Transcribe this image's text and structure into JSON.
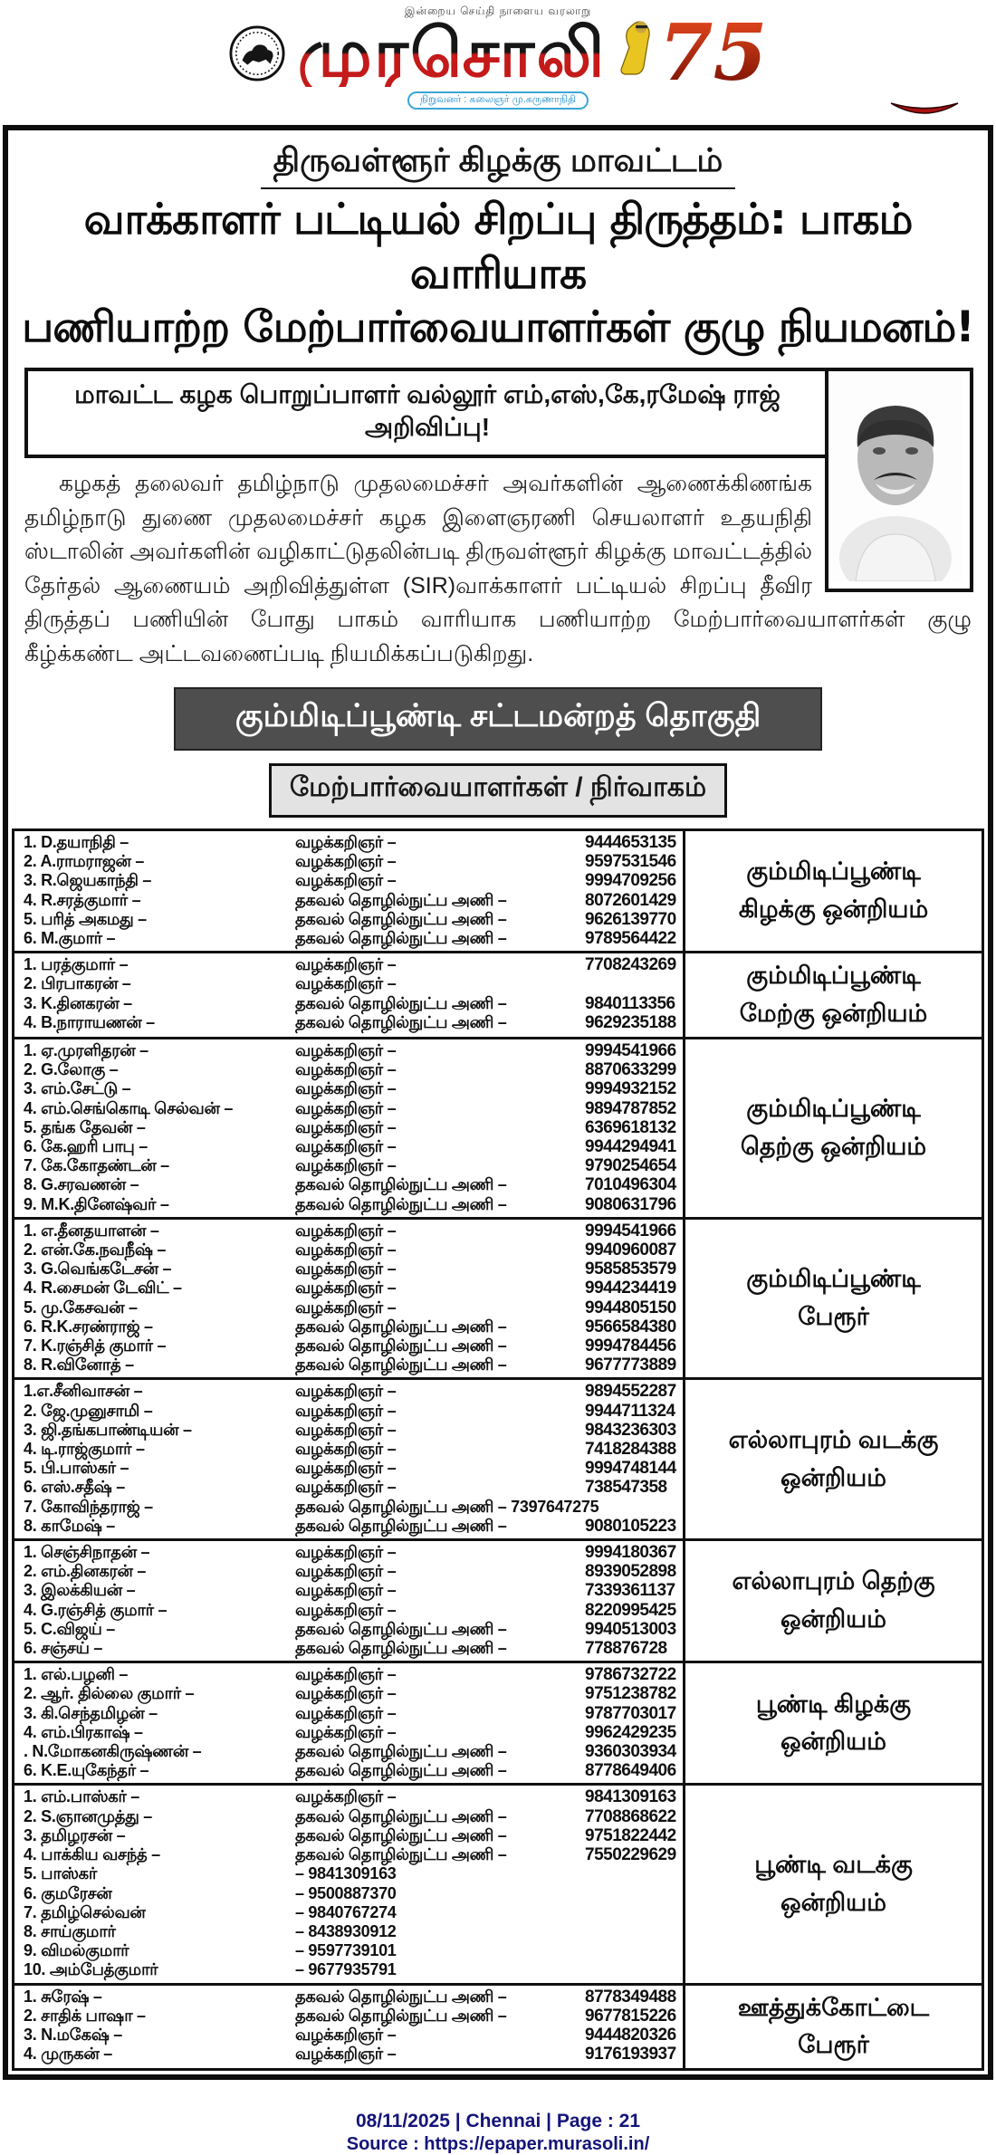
{
  "masthead": {
    "tagline": "இன்றைய செய்தி நாளைய வரலாறு",
    "title": "முரசொலி",
    "founder_capsule": "நிறுவனர் : கலைஞர் மு.கருணாநிதி",
    "anniversary": "75",
    "colors": {
      "title_top": "#161616",
      "title_bottom": "#c41a1a",
      "capsule_blue": "#1d8fd0",
      "anniversary_red": "#b33312"
    }
  },
  "article": {
    "district_title": "திருவள்ளூர் கிழக்கு மாவட்டம்",
    "headline_line1": "வாக்காளர் பட்டியல் சிறப்பு திருத்தம்: பாகம் வாரியாக",
    "headline_line2": "பணியாற்ற மேற்பார்வையாளர்கள் குழு நியமனம்!",
    "announcement": "மாவட்ட கழக பொறுப்பாளர் வல்லூர் எம்,எஸ்,கே,ரமேஷ் ராஜ் அறிவிப்பு!",
    "body": "கழகத் தலைவர் தமிழ்நாடு முதலமைச்சர் அவர்களின் ஆணைக்கிணங்க தமிழ்நாடு துணை முதலமைச்சர் கழக இளைஞரணி செயலாளர் உதயநிதி ஸ்டாலின் அவர்களின் வழிகாட்டுதலின்படி திருவள்ளூர் கிழக்கு மாவட்டத்தில் தேர்தல் ஆணையம் அறிவித்துள்ள (SIR)வாக்காளர் பட்டியல் சிறப்பு தீவிர திருத்தப் பணியின் போது பாகம் வாரியாக பணியாற்ற மேற்பார்வையாளர்கள் குழு கீழ்க்கண்ட அட்டவணைப்படி நியமிக்கப்படுகிறது.",
    "constituency_banner": "கும்மிடிப்பூண்டி சட்டமன்றத் தொகுதி",
    "table_header": "மேற்பார்வையாளர்கள் / நிர்வாகம்"
  },
  "table": {
    "groups": [
      {
        "region": "கும்மிடிப்பூண்டி\nகிழக்கு ஒன்றியம்",
        "rows": [
          [
            "1. D.தயாநிதி –",
            "வழக்கறிஞர் –",
            "9444653135"
          ],
          [
            "2. A.ராமராஜன் –",
            "வழக்கறிஞர் –",
            "9597531546"
          ],
          [
            "3. R.ஜெயகாந்தி –",
            "வழக்கறிஞர் –",
            "9994709256"
          ],
          [
            "4. R.சரத்குமார் –",
            "தகவல் தொழில்நுட்ப அணி –",
            "8072601429"
          ],
          [
            "5. பரித் அகமது –",
            "தகவல் தொழில்நுட்ப அணி –",
            "9626139770"
          ],
          [
            "6. M.குமார் –",
            "தகவல் தொழில்நுட்ப அணி –",
            "9789564422"
          ]
        ]
      },
      {
        "region": "கும்மிடிப்பூண்டி\nமேற்கு ஒன்றியம்",
        "rows": [
          [
            "1. பரத்குமார் –",
            "வழக்கறிஞர் –",
            "7708243269"
          ],
          [
            "2. பிரபாகரன் –",
            "வழக்கறிஞர் –",
            ""
          ],
          [
            "3. K.தினகரன் –",
            "தகவல் தொழில்நுட்ப அணி –",
            "9840113356"
          ],
          [
            "4. B.நாராயணன் –",
            "தகவல் தொழில்நுட்ப அணி –",
            "9629235188"
          ]
        ]
      },
      {
        "region": "கும்மிடிப்பூண்டி\nதெற்கு ஒன்றியம்",
        "rows": [
          [
            "1. ஏ.முரளிதரன் –",
            "வழக்கறிஞர் –",
            "9994541966"
          ],
          [
            "2. G.லோகு –",
            "வழக்கறிஞர் –",
            "8870633299"
          ],
          [
            "3. எம்.சேட்டு –",
            "வழக்கறிஞர் –",
            "9994932152"
          ],
          [
            "4. எம்.செங்கொடி செல்வன் –",
            "வழக்கறிஞர் –",
            "9894787852"
          ],
          [
            "5. தங்க தேவன் –",
            "வழக்கறிஞர் –",
            "6369618132"
          ],
          [
            "6. கே.ஹரி பாபு –",
            "வழக்கறிஞர் –",
            "9944294941"
          ],
          [
            "7. கே.கோதண்டன் –",
            "வழக்கறிஞர் –",
            "9790254654"
          ],
          [
            "8. G.சரவணன் –",
            "தகவல் தொழில்நுட்ப அணி –",
            "7010496304"
          ],
          [
            "9. M.K.தினேஷ்வர் –",
            "தகவல் தொழில்நுட்ப அணி –",
            "9080631796"
          ]
        ]
      },
      {
        "region": "கும்மிடிப்பூண்டி\nபேரூர்",
        "rows": [
          [
            "1. எ.தீனதயாளன் –",
            "வழக்கறிஞர் –",
            "9994541966"
          ],
          [
            "2. என்.கே.நவநீஷ் –",
            "வழக்கறிஞர் –",
            "9940960087"
          ],
          [
            "3. G.வெங்கடேசன் –",
            "வழக்கறிஞர் –",
            "9585853579"
          ],
          [
            "4. R.சைமன் டேவிட் –",
            "வழக்கறிஞர் –",
            "9944234419"
          ],
          [
            "5. மு.கேசவன் –",
            "வழக்கறிஞர் –",
            "9944805150"
          ],
          [
            "6. R.K.சரண்ராஜ் –",
            "தகவல் தொழில்நுட்ப அணி –",
            "9566584380"
          ],
          [
            "7. K.ரஞ்சித் குமார் –",
            "தகவல் தொழில்நுட்ப அணி –",
            "9994784456"
          ],
          [
            "8. R.வினோத் –",
            "தகவல் தொழில்நுட்ப அணி –",
            "9677773889"
          ]
        ]
      },
      {
        "region": "எல்லாபுரம் வடக்கு\nஒன்றியம்",
        "rows": [
          [
            "1.எ.சீனிவாசன் –",
            "வழக்கறிஞர் –",
            "9894552287"
          ],
          [
            "2. ஜே.முனுசாமி –",
            "வழக்கறிஞர் –",
            "9944711324"
          ],
          [
            "3. ஜி.தங்கபாண்டியன் –",
            "வழக்கறிஞர் –",
            "9843236303"
          ],
          [
            "4. டி.ராஜ்குமார் –",
            "வழக்கறிஞர் –",
            "7418284388"
          ],
          [
            "5. பி.பாஸ்கர் –",
            "வழக்கறிஞர் –",
            "9994748144"
          ],
          [
            "6. எஸ்.சதீஷ் –",
            "வழக்கறிஞர் –",
            "738547358"
          ],
          [
            "7. கோவிந்தராஜ் –",
            "தகவல் தொழில்நுட்ப அணி – 7397647275",
            ""
          ],
          [
            "8. காமேஷ் –",
            "தகவல் தொழில்நுட்ப அணி –",
            "9080105223"
          ]
        ]
      },
      {
        "region": "எல்லாபுரம் தெற்கு\nஒன்றியம்",
        "rows": [
          [
            "1. செஞ்சிநாதன் –",
            "வழக்கறிஞர் –",
            "9994180367"
          ],
          [
            "2. எம்.தினகரன் –",
            "வழக்கறிஞர் –",
            "8939052898"
          ],
          [
            "3. இலக்கியன் –",
            "வழக்கறிஞர் –",
            "7339361137"
          ],
          [
            "4. G.ரஞ்சித் குமார் –",
            "வழக்கறிஞர் –",
            "8220995425"
          ],
          [
            "5. C.விஜய் –",
            "தகவல் தொழில்நுட்ப அணி –",
            "9940513003"
          ],
          [
            "6. சஞ்சய் –",
            "தகவல் தொழில்நுட்ப அணி –",
            "778876728"
          ]
        ]
      },
      {
        "region": "பூண்டி கிழக்கு\nஒன்றியம்",
        "rows": [
          [
            "1. எல்.பழனி –",
            "வழக்கறிஞர் –",
            "9786732722"
          ],
          [
            "2. ஆர். தில்லை குமார் –",
            "வழக்கறிஞர் –",
            "9751238782"
          ],
          [
            "3. கி.செந்தமிழன் –",
            "வழக்கறிஞர் –",
            "9787703017"
          ],
          [
            "4. எம்.பிரகாஷ் –",
            "வழக்கறிஞர் –",
            "9962429235"
          ],
          [
            ". N.மோகனகிருஷ்ணன் –",
            "தகவல் தொழில்நுட்ப அணி –",
            "9360303934"
          ],
          [
            "6. K.E.யுகேந்தர் –",
            "தகவல் தொழில்நுட்ப அணி –",
            "8778649406"
          ]
        ]
      },
      {
        "region": "பூண்டி வடக்கு\nஒன்றியம்",
        "rows": [
          [
            "1. எம்.பாஸ்கர் –",
            "வழக்கறிஞர் –",
            "9841309163"
          ],
          [
            "2. S.ஞானமுத்து –",
            "தகவல் தொழில்நுட்ப அணி –",
            "7708868622"
          ],
          [
            "3. தமிழரசன் –",
            "தகவல் தொழில்நுட்ப அணி –",
            "9751822442"
          ],
          [
            "4. பாக்கிய வசந்த் –",
            "தகவல் தொழில்நுட்ப அணி –",
            "7550229629"
          ],
          [
            "5. பாஸ்கர்",
            "– 9841309163",
            ""
          ],
          [
            "6. குமரேசன்",
            "– 9500887370",
            ""
          ],
          [
            "7. தமிழ்செல்வன்",
            "– 9840767274",
            ""
          ],
          [
            "8. சாய்குமார்",
            "– 8438930912",
            ""
          ],
          [
            "9. விமல்குமார்",
            "– 9597739101",
            ""
          ],
          [
            "10. அம்பேத்குமார்",
            "– 9677935791",
            ""
          ]
        ]
      },
      {
        "region": "ஊத்துக்கோட்டை\nபேரூர்",
        "rows": [
          [
            "1. சுரேஷ் –",
            "தகவல் தொழில்நுட்ப அணி –",
            "8778349488"
          ],
          [
            "2. சாதிக் பாஷா –",
            "தகவல் தொழில்நுட்ப அணி –",
            "9677815226"
          ],
          [
            "3. N.மகேஷ் –",
            "வழக்கறிஞர் –",
            "9444820326"
          ],
          [
            "4. முருகன் –",
            "வழக்கறிஞர் –",
            "9176193937"
          ]
        ]
      }
    ]
  },
  "footer": {
    "line1": "08/11/2025 | Chennai | Page : 21",
    "line2": "Source : https://epaper.murasoli.in/"
  }
}
